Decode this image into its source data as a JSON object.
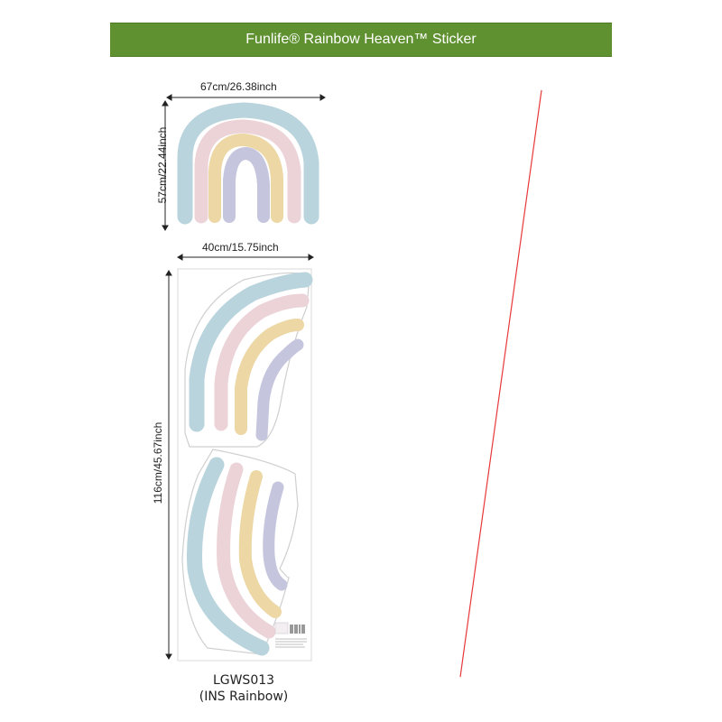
{
  "banner": {
    "title": "Funlife® Rainbow Heaven™ Sticker",
    "color": "#5f9130"
  },
  "top_sticker": {
    "width_label": "67cm/26.38inch",
    "height_label": "57cm/22.44inch"
  },
  "sheet": {
    "width_label": "40cm/15.75inch",
    "height_label": "116cm/45.67inch"
  },
  "product": {
    "code": "LGWS013",
    "name": "(INS Rainbow)"
  },
  "colors": {
    "blue": "#b9d4dc",
    "pink": "#ecd3d8",
    "yellow": "#ecd7a5",
    "lavender": "#c5c6dd",
    "guide_line": "#e8383a",
    "dimension_line": "#222222"
  }
}
